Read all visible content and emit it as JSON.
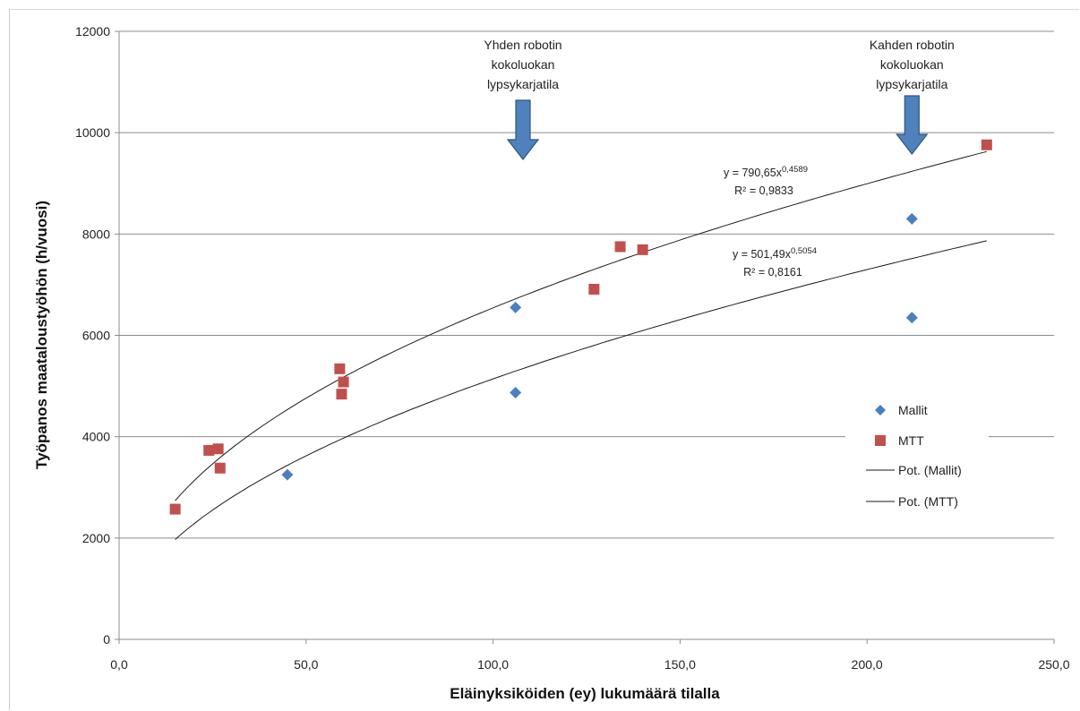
{
  "chart_data": {
    "type": "scatter",
    "xlabel": "Eläinyksiköiden (ey) lukumäärä tilalla",
    "ylabel": "Työpanos maataloustyöhön (h/vuosi)",
    "xlim": [
      0,
      250
    ],
    "ylim": [
      0,
      12000
    ],
    "x_ticks": [
      "0,0",
      "50,0",
      "100,0",
      "150,0",
      "200,0",
      "250,0"
    ],
    "y_ticks": [
      "0",
      "2000",
      "4000",
      "6000",
      "8000",
      "10000",
      "12000"
    ],
    "grid": "horizontal",
    "legend_position": "right",
    "series": [
      {
        "name": "Mallit",
        "marker": "diamond",
        "color": "#4a7fc1",
        "points": [
          [
            45,
            3250
          ],
          [
            106,
            6550
          ],
          [
            106,
            4870
          ],
          [
            212,
            8300
          ],
          [
            212,
            6350
          ]
        ]
      },
      {
        "name": "MTT",
        "marker": "square",
        "color": "#c0504d",
        "points": [
          [
            15,
            2570
          ],
          [
            24,
            3730
          ],
          [
            26.5,
            3760
          ],
          [
            27,
            3380
          ],
          [
            59,
            5340
          ],
          [
            60,
            5080
          ],
          [
            59.5,
            4840
          ],
          [
            127,
            6910
          ],
          [
            134,
            7750
          ],
          [
            140,
            7690
          ],
          [
            232,
            9760
          ]
        ]
      }
    ],
    "trendlines": [
      {
        "name": "Pot. (Mallit)",
        "a": 790.65,
        "b": 0.4589,
        "x_range": [
          15,
          232
        ],
        "equation_prefix": "y = 790,65x",
        "equation_exponent": "0,4589",
        "r2_text": "R² = 0,9833"
      },
      {
        "name": "Pot. (MTT)",
        "a": 501.49,
        "b": 0.5054,
        "x_range": [
          15,
          232
        ],
        "equation_prefix": "y = 501,49x",
        "equation_exponent": "0,5054",
        "r2_text": "R² = 0,8161"
      }
    ],
    "annotations": [
      {
        "lines": [
          "Yhden robotin",
          "kokoluokan",
          "lypsykarjatila"
        ],
        "x": 108,
        "arrow_color": "#4f81bd"
      },
      {
        "lines": [
          "Kahden robotin",
          "kokoluokan",
          "lypsykarjatila"
        ],
        "x": 212,
        "arrow_color": "#4f81bd"
      }
    ],
    "legend": [
      "Mallit",
      "MTT",
      "Pot. (Mallit)",
      "Pot. (MTT)"
    ]
  }
}
